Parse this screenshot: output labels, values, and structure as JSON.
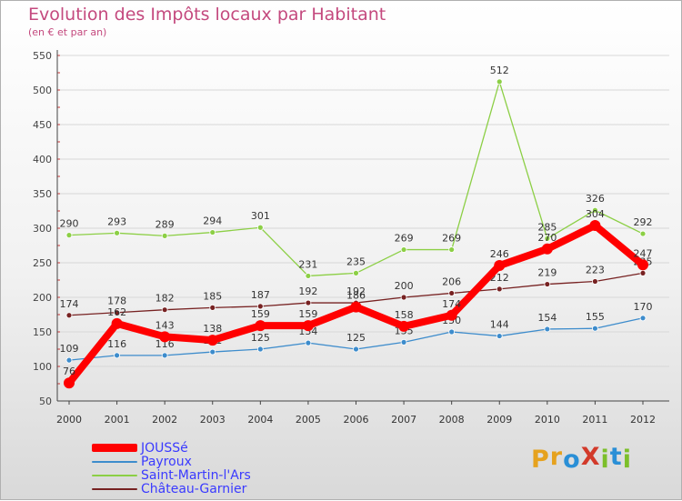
{
  "title": "Evolution des Impôts locaux par Habitant",
  "subtitle": "(en € et par an)",
  "logo": {
    "text": "ProXiti",
    "letters": [
      {
        "ch": "P",
        "color": "#e6a21e"
      },
      {
        "ch": "r",
        "color": "#e6a21e"
      },
      {
        "ch": "o",
        "color": "#2a8fd6"
      },
      {
        "ch": "X",
        "color": "#d23a2a"
      },
      {
        "ch": "i",
        "color": "#7cbf2a"
      },
      {
        "ch": "t",
        "color": "#2a8fd6"
      },
      {
        "ch": "i",
        "color": "#7cbf2a"
      }
    ]
  },
  "chart_data": {
    "type": "line",
    "title": "Evolution des Impôts locaux par Habitant",
    "subtitle": "(en € et par an)",
    "xlabel": "",
    "ylabel": "",
    "categories": [
      "2000",
      "2001",
      "2002",
      "2003",
      "2004",
      "2005",
      "2006",
      "2007",
      "2008",
      "2009",
      "2010",
      "2011",
      "2012"
    ],
    "ylim": [
      50,
      550
    ],
    "yticks": [
      50,
      100,
      150,
      200,
      250,
      300,
      350,
      400,
      450,
      500,
      550
    ],
    "grid": true,
    "legend_position": "bottom-left",
    "series": [
      {
        "name": "Saint-Martin-l'Ars",
        "color": "#8ccf45",
        "values": [
          290,
          293,
          289,
          294,
          301,
          231,
          235,
          269,
          269,
          512,
          285,
          326,
          292
        ]
      },
      {
        "name": "Château-Garnier",
        "color": "#772222",
        "values": [
          174,
          178,
          182,
          185,
          187,
          192,
          192,
          200,
          206,
          212,
          219,
          223,
          235
        ]
      },
      {
        "name": "Payroux",
        "color": "#3d8ccc",
        "values": [
          109,
          116,
          116,
          121,
          125,
          134,
          125,
          135,
          150,
          144,
          154,
          155,
          170
        ]
      },
      {
        "name": "JOUSSé",
        "color": "#ff0000",
        "values": [
          76,
          162,
          143,
          138,
          159,
          159,
          186,
          158,
          174,
          246,
          270,
          304,
          247
        ]
      }
    ],
    "legend_order": [
      "JOUSSé",
      "Payroux",
      "Saint-Martin-l'Ars",
      "Château-Garnier"
    ]
  }
}
